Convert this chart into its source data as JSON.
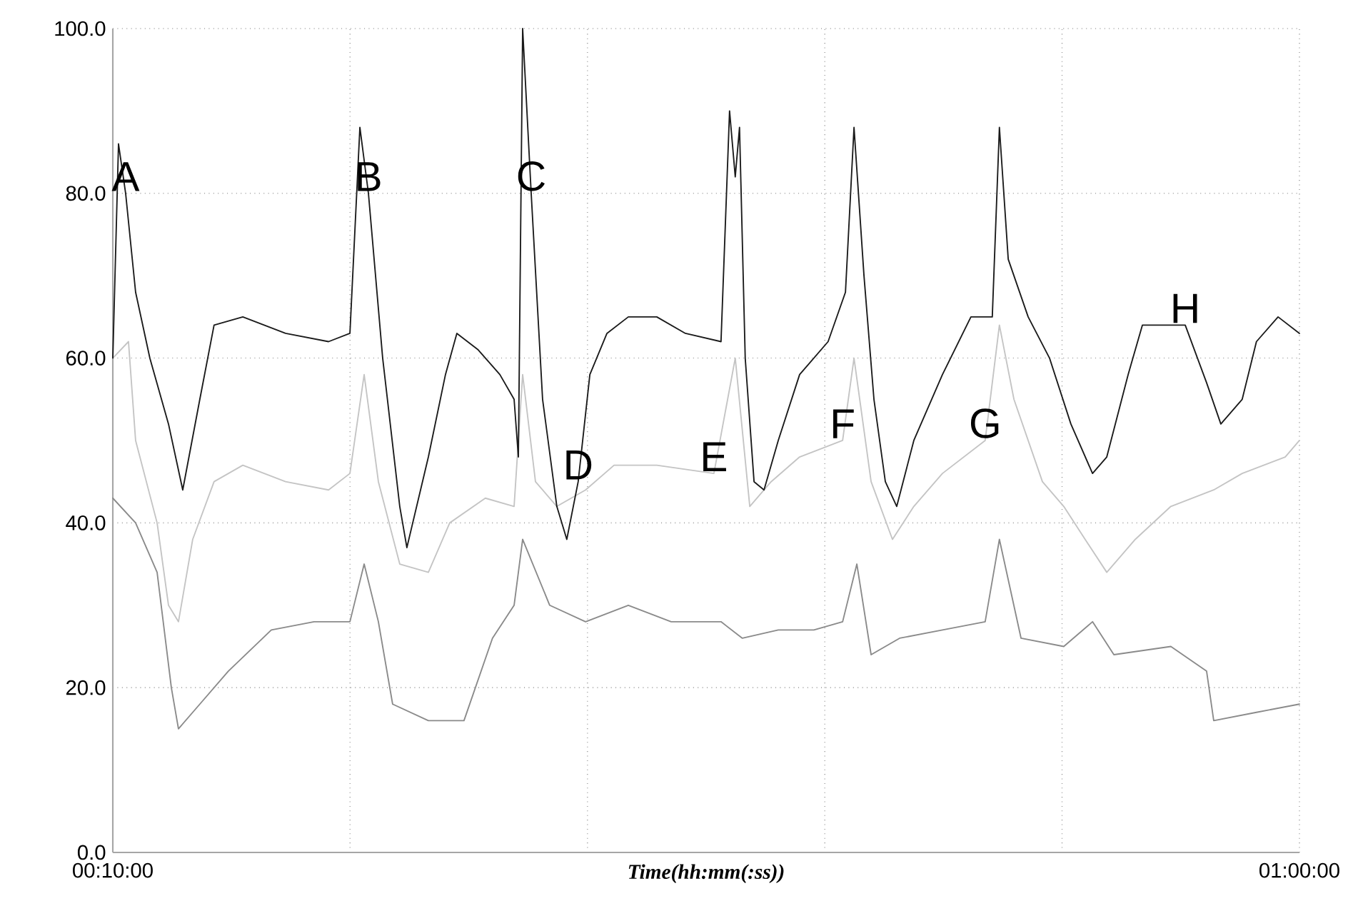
{
  "chart_data": {
    "type": "line",
    "xlabel": "*Time(hh:mm(:ss))*",
    "xlim": [
      0.1667,
      1.0
    ],
    "xticks": [
      {
        "value": 0.1667,
        "label": "00:10:00"
      },
      {
        "value": 0.3333,
        "label": null
      },
      {
        "value": 0.5,
        "label": null
      },
      {
        "value": 0.6667,
        "label": null
      },
      {
        "value": 0.8333,
        "label": null
      },
      {
        "value": 1.0,
        "label": "01:00:00"
      }
    ],
    "ylim": [
      0,
      100
    ],
    "yticks": [
      {
        "value": 0,
        "label": "0.0"
      },
      {
        "value": 20,
        "label": "20.0"
      },
      {
        "value": 40,
        "label": "40.0"
      },
      {
        "value": 60,
        "label": "60.0"
      },
      {
        "value": 80,
        "label": "80.0"
      },
      {
        "value": 100,
        "label": "100.0"
      }
    ],
    "grid": true,
    "series": [
      {
        "color": "#c4c4c4",
        "x": [
          0.1667,
          0.1777,
          0.1827,
          0.1978,
          0.2058,
          0.2128,
          0.2228,
          0.2378,
          0.258,
          0.288,
          0.3182,
          0.3332,
          0.3432,
          0.3532,
          0.3682,
          0.3883,
          0.4033,
          0.4283,
          0.4485,
          0.4545,
          0.4635,
          0.4785,
          0.4987,
          0.5187,
          0.5487,
          0.5888,
          0.6038,
          0.614,
          0.629,
          0.649,
          0.6792,
          0.6872,
          0.6992,
          0.7142,
          0.7292,
          0.7493,
          0.7793,
          0.7893,
          0.7995,
          0.8195,
          0.8345,
          0.8495,
          0.8647,
          0.8847,
          0.9097,
          0.9398,
          0.9598,
          0.99,
          1.0
        ],
        "values": [
          60,
          62,
          50,
          40,
          30,
          28,
          38,
          45,
          47,
          45,
          44,
          46,
          58,
          45,
          35,
          34,
          40,
          43,
          42,
          58,
          45,
          42,
          44,
          47,
          47,
          46,
          60,
          42,
          45,
          48,
          50,
          60,
          45,
          38,
          42,
          46,
          50,
          64,
          55,
          45,
          42,
          38,
          34,
          38,
          42,
          44,
          46,
          48,
          50
        ]
      },
      {
        "color": "#8a8a8a",
        "x": [
          0.1667,
          0.1827,
          0.1978,
          0.2078,
          0.2128,
          0.2278,
          0.2478,
          0.278,
          0.308,
          0.3332,
          0.3432,
          0.3532,
          0.3632,
          0.3883,
          0.4133,
          0.4333,
          0.4485,
          0.4545,
          0.4735,
          0.4987,
          0.5287,
          0.5588,
          0.5938,
          0.6088,
          0.634,
          0.659,
          0.6792,
          0.6892,
          0.6992,
          0.7192,
          0.7493,
          0.7793,
          0.7893,
          0.8045,
          0.8345,
          0.8547,
          0.8697,
          0.9097,
          0.9348,
          0.9398,
          0.9698,
          1.0
        ],
        "values": [
          43,
          40,
          34,
          20,
          15,
          18,
          22,
          27,
          28,
          28,
          35,
          28,
          18,
          16,
          16,
          26,
          30,
          38,
          30,
          28,
          30,
          28,
          28,
          26,
          27,
          27,
          28,
          35,
          24,
          26,
          27,
          28,
          38,
          26,
          25,
          28,
          24,
          25,
          22,
          16,
          17,
          18
        ]
      },
      {
        "color": "#1a1a1a",
        "x": [
          0.1667,
          0.1707,
          0.1757,
          0.1827,
          0.1927,
          0.2058,
          0.2158,
          0.2278,
          0.2378,
          0.258,
          0.288,
          0.3182,
          0.3332,
          0.3402,
          0.3462,
          0.3562,
          0.3682,
          0.3732,
          0.3883,
          0.4003,
          0.4083,
          0.4233,
          0.4385,
          0.4485,
          0.4515,
          0.4545,
          0.4605,
          0.4685,
          0.4785,
          0.4855,
          0.4935,
          0.5017,
          0.5137,
          0.5287,
          0.5487,
          0.5688,
          0.5938,
          0.5998,
          0.6038,
          0.6068,
          0.6108,
          0.617,
          0.624,
          0.634,
          0.649,
          0.669,
          0.6812,
          0.6872,
          0.6942,
          0.7012,
          0.7092,
          0.7172,
          0.7292,
          0.7493,
          0.7693,
          0.7843,
          0.7893,
          0.7955,
          0.8095,
          0.8245,
          0.8395,
          0.8547,
          0.8647,
          0.8797,
          0.8897,
          0.9198,
          0.9348,
          0.9448,
          0.9598,
          0.9698,
          0.985,
          1.0
        ],
        "values": [
          60,
          86,
          80,
          68,
          60,
          52,
          44,
          55,
          64,
          65,
          63,
          62,
          63,
          88,
          80,
          60,
          42,
          37,
          48,
          58,
          63,
          61,
          58,
          55,
          48,
          100,
          80,
          55,
          42,
          38,
          45,
          58,
          63,
          65,
          65,
          63,
          62,
          90,
          82,
          88,
          60,
          45,
          44,
          50,
          58,
          62,
          68,
          88,
          70,
          55,
          45,
          42,
          50,
          58,
          65,
          65,
          88,
          72,
          65,
          60,
          52,
          46,
          48,
          58,
          64,
          64,
          57,
          52,
          55,
          62,
          65,
          63
        ]
      }
    ],
    "annotations": [
      {
        "text": "A",
        "x": 0.1757,
        "y": 80
      },
      {
        "text": "B",
        "x": 0.3462,
        "y": 80
      },
      {
        "text": "C",
        "x": 0.4605,
        "y": 80
      },
      {
        "text": "D",
        "x": 0.4935,
        "y": 45
      },
      {
        "text": "E",
        "x": 0.5888,
        "y": 46
      },
      {
        "text": "F",
        "x": 0.6792,
        "y": 50
      },
      {
        "text": "G",
        "x": 0.7793,
        "y": 50
      },
      {
        "text": "H",
        "x": 0.9198,
        "y": 64
      }
    ]
  }
}
